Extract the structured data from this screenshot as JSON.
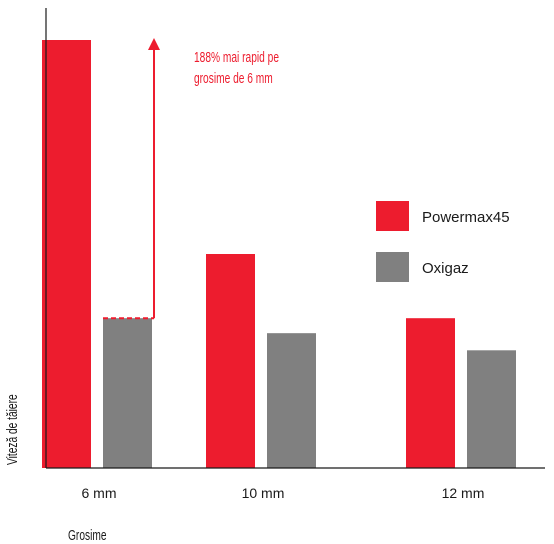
{
  "chart_data": {
    "type": "bar",
    "title": "",
    "xlabel": "Grosime",
    "ylabel": "Viteză de tăiere",
    "categories": [
      "6 mm",
      "10 mm",
      "12 mm"
    ],
    "series": [
      {
        "name": "Powermax45",
        "color": "#ed1c2e",
        "values": [
          100,
          50,
          35
        ]
      },
      {
        "name": "Oxigaz",
        "color": "#808080",
        "values": [
          35,
          31.5,
          27.5
        ]
      }
    ],
    "ylim": [
      0,
      106
    ],
    "grid": false,
    "legend_position": "right",
    "annotation": {
      "lines": [
        "188% mai rapid pe",
        "grosime de 6 mm"
      ],
      "color": "#ed1c2e"
    }
  }
}
